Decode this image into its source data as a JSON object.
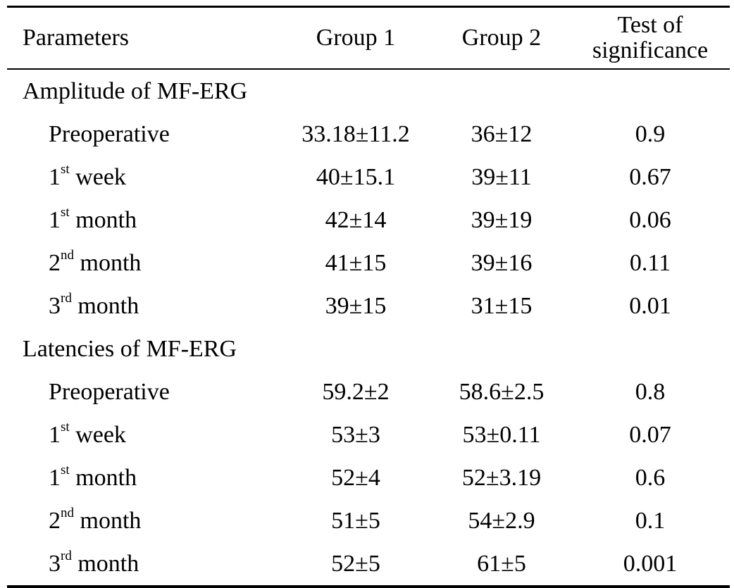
{
  "table": {
    "headers": {
      "parameters": "Parameters",
      "group1": "Group 1",
      "group2": "Group 2",
      "test_line1": "Test of",
      "test_line2": "significance"
    },
    "sections": [
      {
        "title": "Amplitude of MF-ERG",
        "rows": [
          {
            "num": "",
            "sup": "",
            "label": "Preoperative",
            "group1": "33.18±11.2",
            "group2": "36±12",
            "test": "0.9"
          },
          {
            "num": "1",
            "sup": "st",
            "label": " week",
            "group1": "40±15.1",
            "group2": "39±11",
            "test": "0.67"
          },
          {
            "num": "1",
            "sup": "st",
            "label": " month",
            "group1": "42±14",
            "group2": "39±19",
            "test": "0.06"
          },
          {
            "num": "2",
            "sup": "nd",
            "label": " month",
            "group1": "41±15",
            "group2": "39±16",
            "test": "0.11"
          },
          {
            "num": "3",
            "sup": "rd",
            "label": " month",
            "group1": "39±15",
            "group2": "31±15",
            "test": "0.01"
          }
        ]
      },
      {
        "title": "Latencies of MF-ERG",
        "rows": [
          {
            "num": "",
            "sup": "",
            "label": "Preoperative",
            "group1": "59.2±2",
            "group2": "58.6±2.5",
            "test": "0.8"
          },
          {
            "num": "1",
            "sup": "st",
            "label": " week",
            "group1": "53±3",
            "group2": "53±0.11",
            "test": "0.07"
          },
          {
            "num": "1",
            "sup": "st",
            "label": " month",
            "group1": "52±4",
            "group2": "52±3.19",
            "test": "0.6"
          },
          {
            "num": "2",
            "sup": "nd",
            "label": " month",
            "group1": "51±5",
            "group2": "54±2.9",
            "test": "0.1"
          },
          {
            "num": "3",
            "sup": "rd",
            "label": " month",
            "group1": "52±5",
            "group2": "61±5",
            "test": "0.001"
          }
        ]
      }
    ]
  }
}
